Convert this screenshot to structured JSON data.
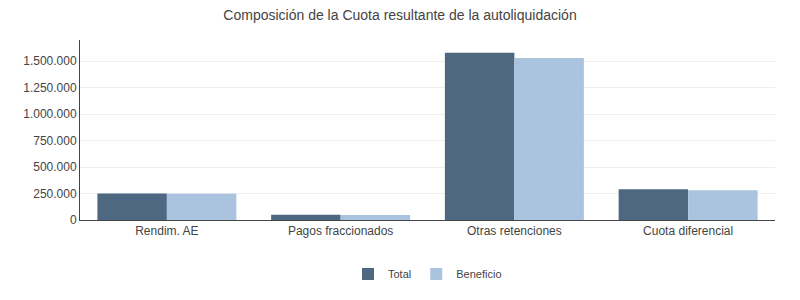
{
  "chart_data": {
    "type": "bar",
    "title": "Composición de la Cuota resultante de la autoliquidación",
    "categories": [
      "Rendim. AE",
      "Pagos fraccionados",
      "Otras retenciones",
      "Cuota diferencial"
    ],
    "series": [
      {
        "name": "Total",
        "color": "#4f6882",
        "values": [
          250000,
          50000,
          1580000,
          290000
        ]
      },
      {
        "name": "Beneficio",
        "color": "#aac4e0",
        "values": [
          248000,
          48000,
          1530000,
          280000
        ]
      }
    ],
    "ylim": [
      0,
      1700000
    ],
    "yticks": [
      0,
      {
        "value": 250000,
        "label": "250.000"
      },
      {
        "value": 500000,
        "label": "500.000"
      },
      {
        "value": 750000,
        "label": "750.000"
      },
      {
        "value": 1000000,
        "label": "1.000.000"
      },
      {
        "value": 1250000,
        "label": "1.250.000"
      },
      {
        "value": 1500000,
        "label": "1.500.000"
      }
    ],
    "grid": true,
    "legend": "bottom"
  }
}
